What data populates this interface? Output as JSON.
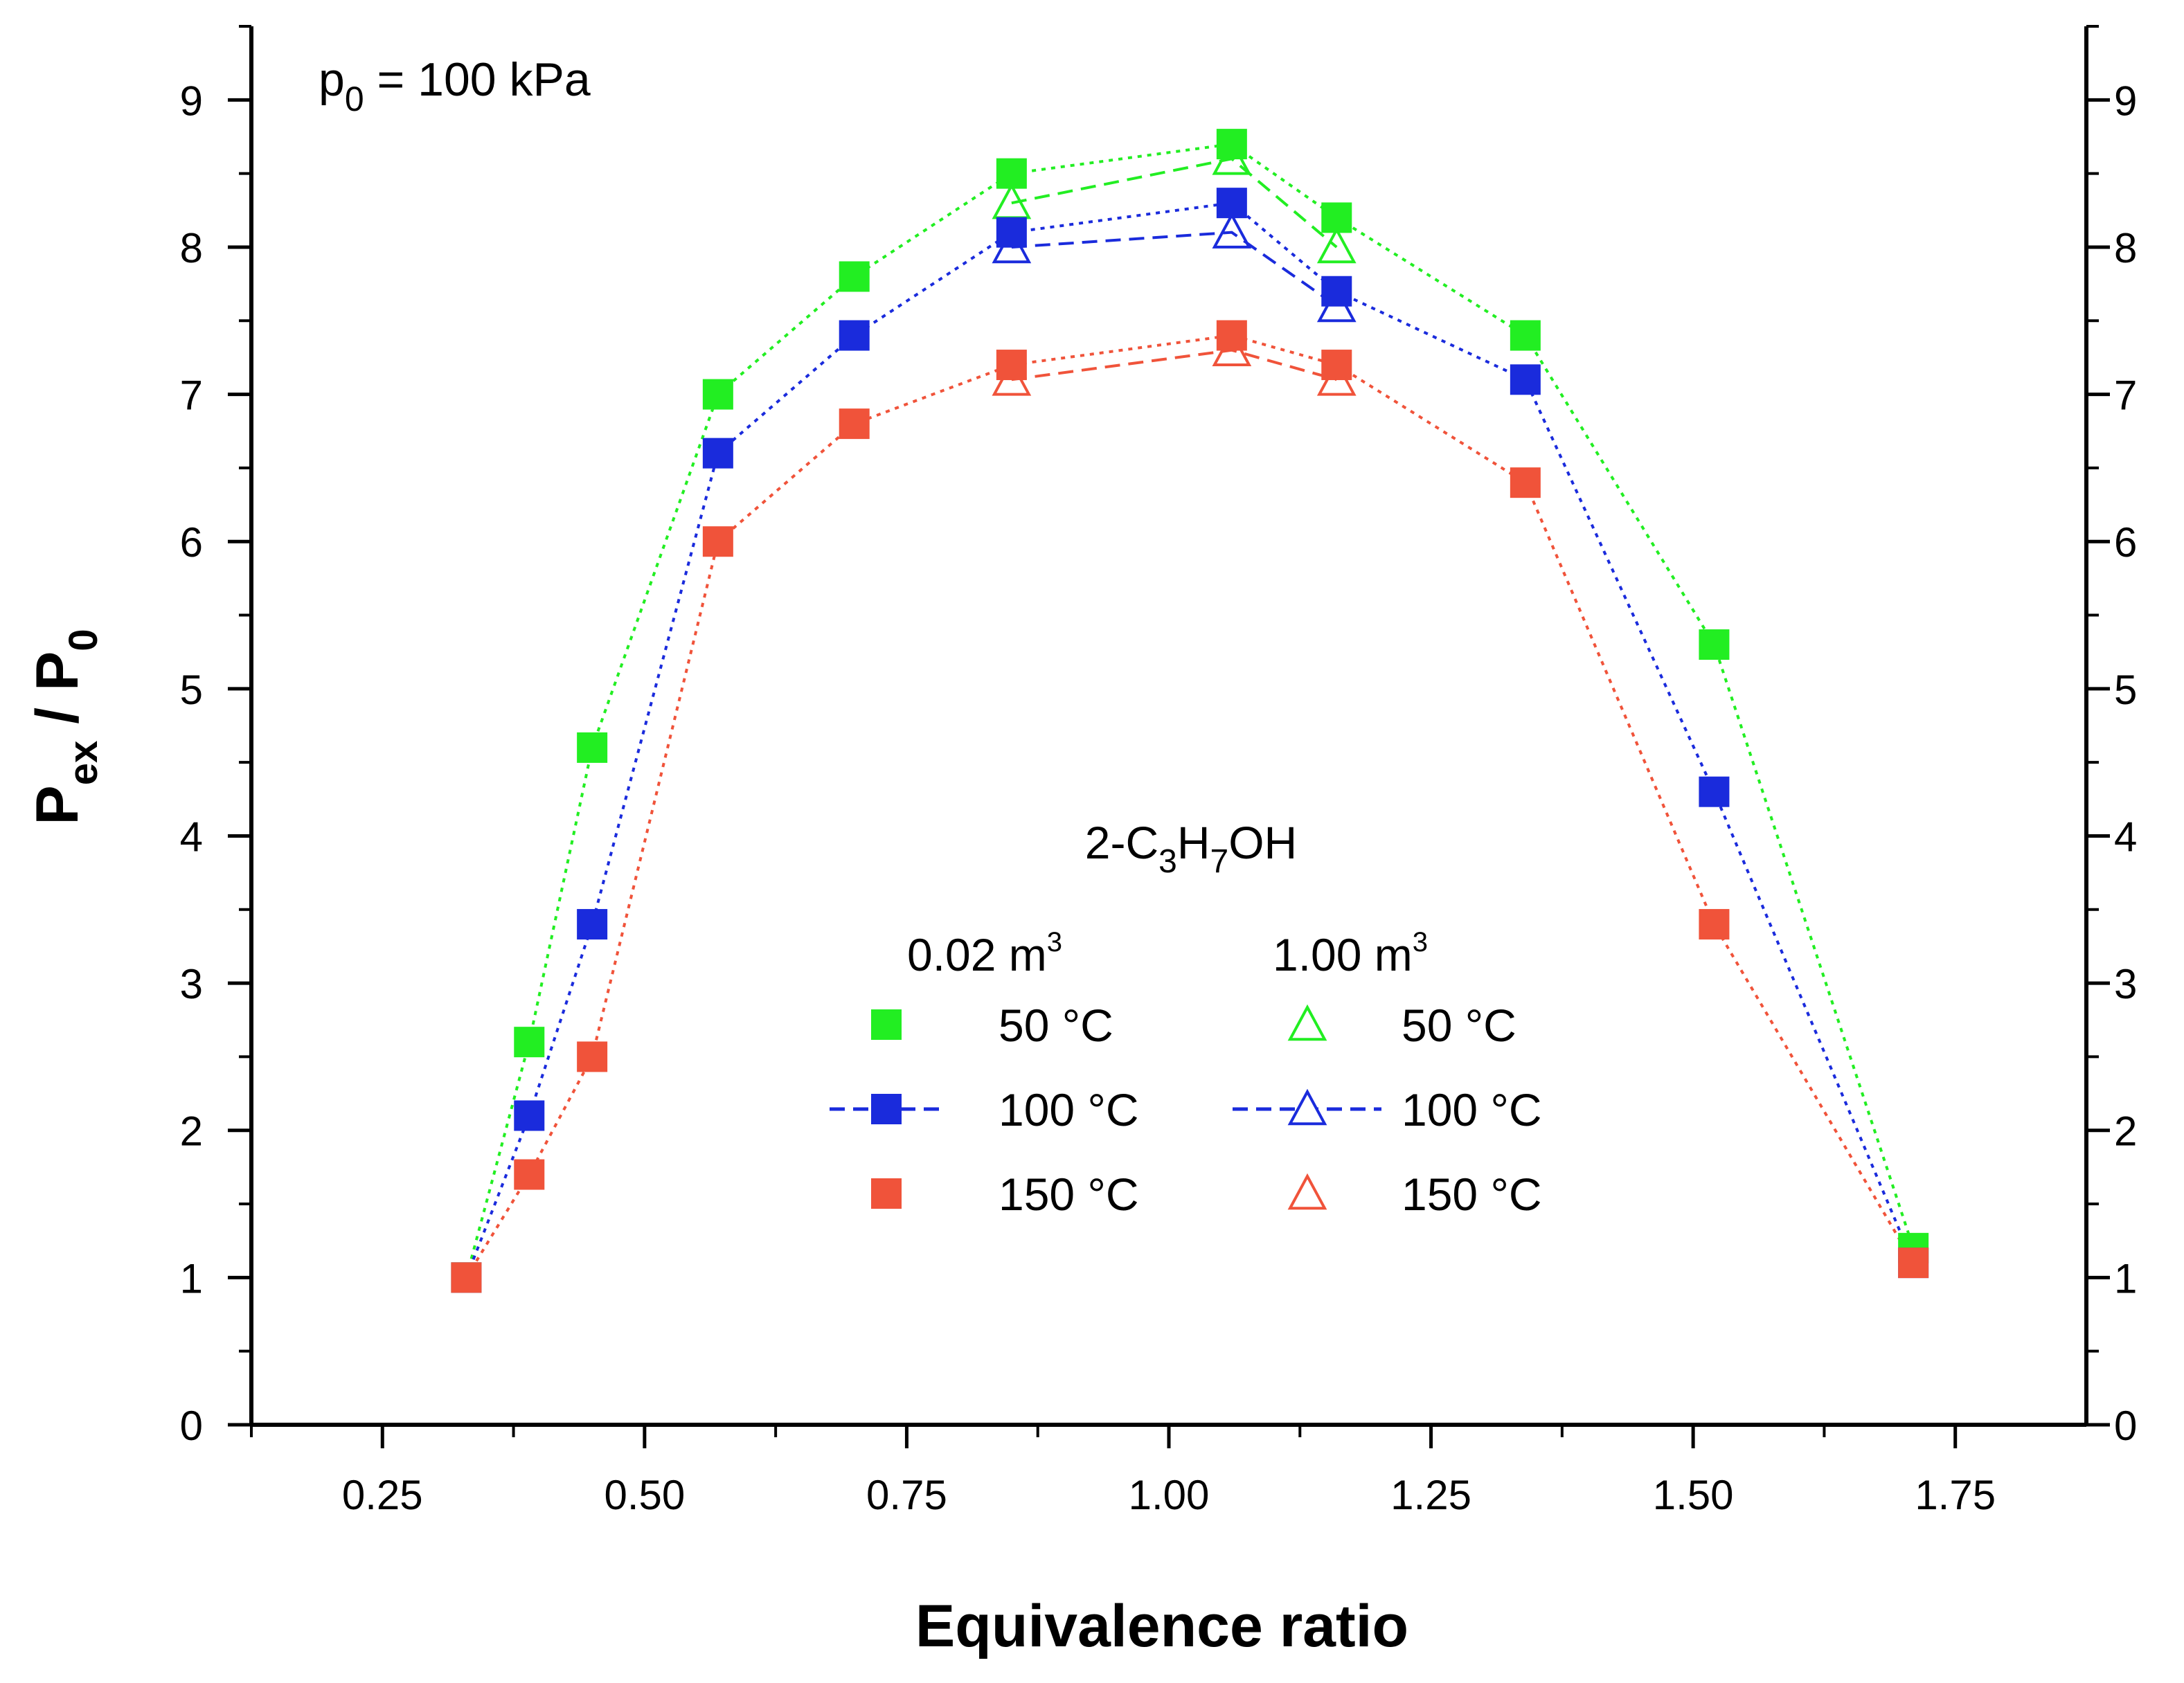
{
  "chart_data": {
    "type": "line",
    "annotation": {
      "main": "p",
      "sub": "0",
      "rest": " = 100 kPa"
    },
    "xlabel": "Equivalence ratio",
    "ylabel": {
      "main": "P",
      "sub1": "ex",
      "mid": " / P",
      "sub2": "0"
    },
    "xlim": [
      0.125,
      1.875
    ],
    "ylim": [
      0,
      9.5
    ],
    "x_ticks": [
      "0.25",
      "0.50",
      "0.75",
      "1.00",
      "1.25",
      "1.50",
      "1.75"
    ],
    "y_ticks": [
      "0",
      "1",
      "2",
      "3",
      "4",
      "5",
      "6",
      "7",
      "8",
      "9"
    ],
    "colors": {
      "50": "#22ee22",
      "100": "#1a2bdc",
      "150": "#f0533a"
    },
    "legend": {
      "compound": {
        "a": "2-C",
        "b": "3",
        "c": "H",
        "d": "7",
        "e": "OH"
      },
      "vol_small": {
        "main": "0.02 m",
        "sup": "3"
      },
      "vol_large": {
        "main": "1.00 m",
        "sup": "3"
      },
      "entries": [
        "50 °C",
        "100 °C",
        "150 °C"
      ]
    },
    "series": [
      {
        "name": "0.02 m3 50 °C",
        "temp": "50",
        "marker": "square",
        "dash": "dot",
        "x": [
          0.33,
          0.39,
          0.45,
          0.57,
          0.7,
          0.85,
          1.06,
          1.16,
          1.34,
          1.52,
          1.71
        ],
        "y": [
          1.0,
          2.6,
          4.6,
          7.0,
          7.8,
          8.5,
          8.7,
          8.2,
          7.4,
          5.3,
          1.2
        ]
      },
      {
        "name": "0.02 m3 100 °C",
        "temp": "100",
        "marker": "square",
        "dash": "dot",
        "x": [
          0.33,
          0.39,
          0.45,
          0.57,
          0.7,
          0.85,
          1.06,
          1.16,
          1.34,
          1.52,
          1.71
        ],
        "y": [
          1.0,
          2.1,
          3.4,
          6.6,
          7.4,
          8.1,
          8.3,
          7.7,
          7.1,
          4.3,
          1.1
        ]
      },
      {
        "name": "0.02 m3 150 °C",
        "temp": "150",
        "marker": "square",
        "dash": "dot",
        "x": [
          0.33,
          0.39,
          0.45,
          0.57,
          0.7,
          0.85,
          1.06,
          1.16,
          1.34,
          1.52,
          1.71
        ],
        "y": [
          1.0,
          1.7,
          2.5,
          6.0,
          6.8,
          7.2,
          7.4,
          7.2,
          6.4,
          3.4,
          1.1
        ]
      },
      {
        "name": "1.00 m3 50 °C",
        "temp": "50",
        "marker": "triangle",
        "dash": "dash",
        "x": [
          0.85,
          1.06,
          1.16
        ],
        "y": [
          8.3,
          8.6,
          8.0
        ]
      },
      {
        "name": "1.00 m3 100 °C",
        "temp": "100",
        "marker": "triangle",
        "dash": "dash",
        "x": [
          0.85,
          1.06,
          1.16
        ],
        "y": [
          8.0,
          8.1,
          7.6
        ]
      },
      {
        "name": "1.00 m3 150 °C",
        "temp": "150",
        "marker": "triangle",
        "dash": "dash",
        "x": [
          0.85,
          1.06,
          1.16
        ],
        "y": [
          7.1,
          7.3,
          7.1
        ]
      }
    ]
  }
}
